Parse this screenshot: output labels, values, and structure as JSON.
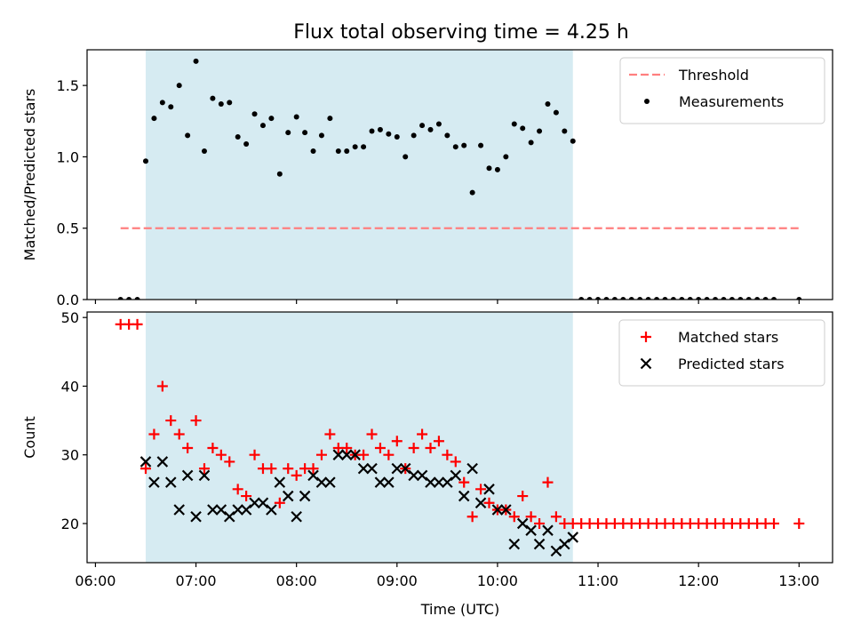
{
  "figure": {
    "title": "Flux total observing time = 4.25 h"
  },
  "chart_data": [
    {
      "type": "scatter",
      "title": "Flux total observing time = 4.25 h",
      "ylabel": "Matched/Predicted stars",
      "xlim": [
        "05:55",
        "13:20"
      ],
      "ylim": [
        0,
        1.75
      ],
      "yticks": [
        0.0,
        0.5,
        1.0,
        1.5
      ],
      "ytick_labels": [
        "0.0",
        "0.5",
        "1.0",
        "1.5"
      ],
      "grid": false,
      "legend_position": "upper right",
      "observing_window": {
        "start": "06:30",
        "end": "10:45",
        "color": "#add8e6"
      },
      "threshold": {
        "name": "Threshold",
        "value": 0.5,
        "x_start": "06:15",
        "x_end": "13:00",
        "color": "#ff7f7f",
        "style": "dashed"
      },
      "series": [
        {
          "name": "Measurements",
          "color": "#000000",
          "marker": "dot",
          "points": [
            [
              "06:15",
              0
            ],
            [
              "06:20",
              0
            ],
            [
              "06:25",
              0
            ],
            [
              "06:30",
              0.97
            ],
            [
              "06:35",
              1.27
            ],
            [
              "06:40",
              1.38
            ],
            [
              "06:45",
              1.35
            ],
            [
              "06:50",
              1.5
            ],
            [
              "06:55",
              1.15
            ],
            [
              "07:00",
              1.67
            ],
            [
              "07:05",
              1.04
            ],
            [
              "07:10",
              1.41
            ],
            [
              "07:15",
              1.37
            ],
            [
              "07:20",
              1.38
            ],
            [
              "07:25",
              1.14
            ],
            [
              "07:30",
              1.09
            ],
            [
              "07:35",
              1.3
            ],
            [
              "07:40",
              1.22
            ],
            [
              "07:45",
              1.27
            ],
            [
              "07:50",
              0.88
            ],
            [
              "07:55",
              1.17
            ],
            [
              "08:00",
              1.28
            ],
            [
              "08:05",
              1.17
            ],
            [
              "08:10",
              1.04
            ],
            [
              "08:15",
              1.15
            ],
            [
              "08:20",
              1.27
            ],
            [
              "08:25",
              1.04
            ],
            [
              "08:30",
              1.04
            ],
            [
              "08:35",
              1.07
            ],
            [
              "08:40",
              1.07
            ],
            [
              "08:45",
              1.18
            ],
            [
              "08:50",
              1.19
            ],
            [
              "08:55",
              1.16
            ],
            [
              "09:00",
              1.14
            ],
            [
              "09:05",
              1.0
            ],
            [
              "09:10",
              1.15
            ],
            [
              "09:15",
              1.22
            ],
            [
              "09:20",
              1.19
            ],
            [
              "09:25",
              1.23
            ],
            [
              "09:30",
              1.15
            ],
            [
              "09:35",
              1.07
            ],
            [
              "09:40",
              1.08
            ],
            [
              "09:45",
              0.75
            ],
            [
              "09:50",
              1.08
            ],
            [
              "09:55",
              0.92
            ],
            [
              "10:00",
              0.91
            ],
            [
              "10:05",
              1.0
            ],
            [
              "10:10",
              1.23
            ],
            [
              "10:15",
              1.2
            ],
            [
              "10:20",
              1.1
            ],
            [
              "10:25",
              1.18
            ],
            [
              "10:30",
              1.37
            ],
            [
              "10:35",
              1.31
            ],
            [
              "10:40",
              1.18
            ],
            [
              "10:45",
              1.11
            ],
            [
              "10:50",
              0
            ],
            [
              "10:55",
              0
            ],
            [
              "11:00",
              0
            ],
            [
              "11:05",
              0
            ],
            [
              "11:10",
              0
            ],
            [
              "11:15",
              0
            ],
            [
              "11:20",
              0
            ],
            [
              "11:25",
              0
            ],
            [
              "11:30",
              0
            ],
            [
              "11:35",
              0
            ],
            [
              "11:40",
              0
            ],
            [
              "11:45",
              0
            ],
            [
              "11:50",
              0
            ],
            [
              "11:55",
              0
            ],
            [
              "12:00",
              0
            ],
            [
              "12:05",
              0
            ],
            [
              "12:10",
              0
            ],
            [
              "12:15",
              0
            ],
            [
              "12:20",
              0
            ],
            [
              "12:25",
              0
            ],
            [
              "12:30",
              0
            ],
            [
              "12:35",
              0
            ],
            [
              "12:40",
              0
            ],
            [
              "12:45",
              0
            ],
            [
              "13:00",
              0
            ]
          ]
        }
      ]
    },
    {
      "type": "scatter",
      "xlabel": "Time (UTC)",
      "ylabel": "Count",
      "xlim": [
        "05:55",
        "13:20"
      ],
      "ylim": [
        14.3,
        50.8
      ],
      "xticks": [
        "06:00",
        "07:00",
        "08:00",
        "09:00",
        "10:00",
        "11:00",
        "12:00",
        "13:00"
      ],
      "yticks": [
        20,
        30,
        40,
        50
      ],
      "grid": false,
      "legend_position": "upper right",
      "observing_window": {
        "start": "06:30",
        "end": "10:45",
        "color": "#add8e6"
      },
      "series": [
        {
          "name": "Matched stars",
          "color": "#ff0000",
          "marker": "plus",
          "points": [
            [
              "06:15",
              49
            ],
            [
              "06:20",
              49
            ],
            [
              "06:25",
              49
            ],
            [
              "06:30",
              28
            ],
            [
              "06:35",
              33
            ],
            [
              "06:40",
              40
            ],
            [
              "06:45",
              35
            ],
            [
              "06:50",
              33
            ],
            [
              "06:55",
              31
            ],
            [
              "07:00",
              35
            ],
            [
              "07:05",
              28
            ],
            [
              "07:10",
              31
            ],
            [
              "07:15",
              30
            ],
            [
              "07:20",
              29
            ],
            [
              "07:25",
              25
            ],
            [
              "07:30",
              24
            ],
            [
              "07:35",
              30
            ],
            [
              "07:40",
              28
            ],
            [
              "07:45",
              28
            ],
            [
              "07:50",
              23
            ],
            [
              "07:55",
              28
            ],
            [
              "08:00",
              27
            ],
            [
              "08:05",
              28
            ],
            [
              "08:10",
              28
            ],
            [
              "08:15",
              30
            ],
            [
              "08:20",
              33
            ],
            [
              "08:25",
              31
            ],
            [
              "08:30",
              31
            ],
            [
              "08:35",
              30
            ],
            [
              "08:40",
              30
            ],
            [
              "08:45",
              33
            ],
            [
              "08:50",
              31
            ],
            [
              "08:55",
              30
            ],
            [
              "09:00",
              32
            ],
            [
              "09:05",
              28
            ],
            [
              "09:10",
              31
            ],
            [
              "09:15",
              33
            ],
            [
              "09:20",
              31
            ],
            [
              "09:25",
              32
            ],
            [
              "09:30",
              30
            ],
            [
              "09:35",
              29
            ],
            [
              "09:40",
              26
            ],
            [
              "09:45",
              21
            ],
            [
              "09:50",
              25
            ],
            [
              "09:55",
              23
            ],
            [
              "10:00",
              22
            ],
            [
              "10:05",
              22
            ],
            [
              "10:10",
              21
            ],
            [
              "10:15",
              24
            ],
            [
              "10:20",
              21
            ],
            [
              "10:25",
              20
            ],
            [
              "10:30",
              26
            ],
            [
              "10:35",
              21
            ],
            [
              "10:40",
              20
            ],
            [
              "10:45",
              20
            ],
            [
              "10:50",
              20
            ],
            [
              "10:55",
              20
            ],
            [
              "11:00",
              20
            ],
            [
              "11:05",
              20
            ],
            [
              "11:10",
              20
            ],
            [
              "11:15",
              20
            ],
            [
              "11:20",
              20
            ],
            [
              "11:25",
              20
            ],
            [
              "11:30",
              20
            ],
            [
              "11:35",
              20
            ],
            [
              "11:40",
              20
            ],
            [
              "11:45",
              20
            ],
            [
              "11:50",
              20
            ],
            [
              "11:55",
              20
            ],
            [
              "12:00",
              20
            ],
            [
              "12:05",
              20
            ],
            [
              "12:10",
              20
            ],
            [
              "12:15",
              20
            ],
            [
              "12:20",
              20
            ],
            [
              "12:25",
              20
            ],
            [
              "12:30",
              20
            ],
            [
              "12:35",
              20
            ],
            [
              "12:40",
              20
            ],
            [
              "12:45",
              20
            ],
            [
              "13:00",
              20
            ]
          ]
        },
        {
          "name": "Predicted stars",
          "color": "#000000",
          "marker": "x",
          "points": [
            [
              "06:30",
              29
            ],
            [
              "06:35",
              26
            ],
            [
              "06:40",
              29
            ],
            [
              "06:45",
              26
            ],
            [
              "06:50",
              22
            ],
            [
              "06:55",
              27
            ],
            [
              "07:00",
              21
            ],
            [
              "07:05",
              27
            ],
            [
              "07:10",
              22
            ],
            [
              "07:15",
              22
            ],
            [
              "07:20",
              21
            ],
            [
              "07:25",
              22
            ],
            [
              "07:30",
              22
            ],
            [
              "07:35",
              23
            ],
            [
              "07:40",
              23
            ],
            [
              "07:45",
              22
            ],
            [
              "07:50",
              26
            ],
            [
              "07:55",
              24
            ],
            [
              "08:00",
              21
            ],
            [
              "08:05",
              24
            ],
            [
              "08:10",
              27
            ],
            [
              "08:15",
              26
            ],
            [
              "08:20",
              26
            ],
            [
              "08:25",
              30
            ],
            [
              "08:30",
              30
            ],
            [
              "08:35",
              30
            ],
            [
              "08:40",
              28
            ],
            [
              "08:45",
              28
            ],
            [
              "08:50",
              26
            ],
            [
              "08:55",
              26
            ],
            [
              "09:00",
              28
            ],
            [
              "09:05",
              28
            ],
            [
              "09:10",
              27
            ],
            [
              "09:15",
              27
            ],
            [
              "09:20",
              26
            ],
            [
              "09:25",
              26
            ],
            [
              "09:30",
              26
            ],
            [
              "09:35",
              27
            ],
            [
              "09:40",
              24
            ],
            [
              "09:45",
              28
            ],
            [
              "09:50",
              23
            ],
            [
              "09:55",
              25
            ],
            [
              "10:00",
              22
            ],
            [
              "10:05",
              22
            ],
            [
              "10:10",
              17
            ],
            [
              "10:15",
              20
            ],
            [
              "10:20",
              19
            ],
            [
              "10:25",
              17
            ],
            [
              "10:30",
              19
            ],
            [
              "10:35",
              16
            ],
            [
              "10:40",
              17
            ],
            [
              "10:45",
              18
            ]
          ]
        }
      ]
    }
  ]
}
